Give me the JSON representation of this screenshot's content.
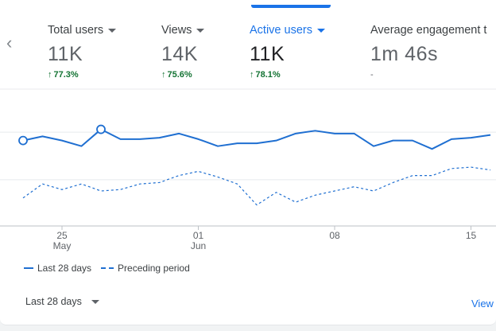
{
  "metrics": [
    {
      "label": "Total users",
      "value": "11K",
      "change": "77.3%",
      "direction": "up",
      "active": false
    },
    {
      "label": "Views",
      "value": "14K",
      "change": "75.6%",
      "direction": "up",
      "active": false
    },
    {
      "label": "Active users",
      "value": "11K",
      "change": "78.1%",
      "direction": "up",
      "active": true
    },
    {
      "label": "Average engagement t",
      "value": "1m 46s",
      "change": "-",
      "direction": "none",
      "active": false
    }
  ],
  "nav": {
    "prev_icon": "chevron-left-icon",
    "prev_glyph": "‹"
  },
  "legend": {
    "current": "Last 28 days",
    "previous": "Preceding period"
  },
  "footer": {
    "range_label": "Last 28 days",
    "view_link": "View"
  },
  "colors": {
    "accent": "#1a73e8",
    "line": "#1f6fd1",
    "positive": "#137333"
  },
  "chart_data": {
    "type": "line",
    "x_ticks": [
      {
        "label": "25",
        "sublabel": "May",
        "index": 2
      },
      {
        "label": "01",
        "sublabel": "Jun",
        "index": 9
      },
      {
        "label": "08",
        "sublabel": "",
        "index": 16
      },
      {
        "label": "15",
        "sublabel": "",
        "index": 23
      }
    ],
    "ylim": [
      0,
      1
    ],
    "grid": true,
    "legend_position": "bottom-left",
    "series": [
      {
        "name": "Last 28 days",
        "style": "solid",
        "values": [
          0.61,
          0.64,
          0.61,
          0.57,
          0.69,
          0.62,
          0.62,
          0.63,
          0.66,
          0.62,
          0.57,
          0.59,
          0.59,
          0.61,
          0.66,
          0.68,
          0.66,
          0.66,
          0.57,
          0.61,
          0.61,
          0.55,
          0.62,
          0.63,
          0.65
        ],
        "markers": [
          0,
          4
        ]
      },
      {
        "name": "Preceding period",
        "style": "dashed",
        "values": [
          0.2,
          0.3,
          0.26,
          0.3,
          0.25,
          0.26,
          0.3,
          0.31,
          0.36,
          0.39,
          0.35,
          0.3,
          0.15,
          0.24,
          0.17,
          0.22,
          0.25,
          0.28,
          0.25,
          0.31,
          0.36,
          0.36,
          0.41,
          0.42,
          0.4
        ]
      }
    ]
  }
}
